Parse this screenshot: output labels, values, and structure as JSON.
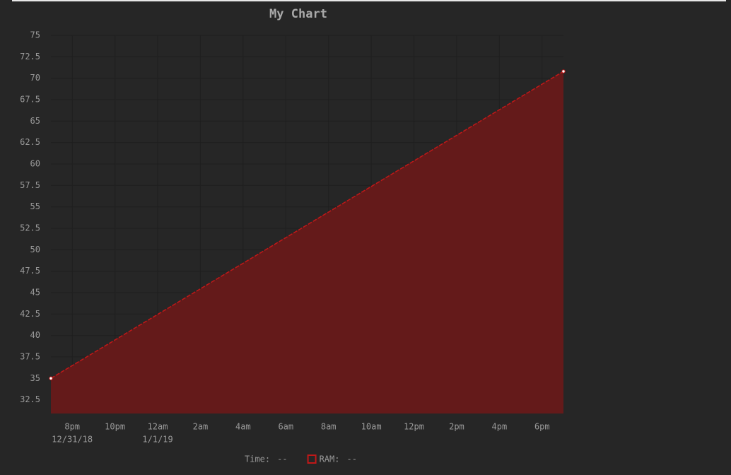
{
  "chart_data": {
    "type": "area",
    "title": "My Chart",
    "x": [
      0,
      24
    ],
    "xlim": [
      0,
      24
    ],
    "xticks": [
      {
        "value": 1,
        "label": "8pm"
      },
      {
        "value": 3,
        "label": "10pm"
      },
      {
        "value": 5,
        "label": "12am"
      },
      {
        "value": 7,
        "label": "2am"
      },
      {
        "value": 9,
        "label": "4am"
      },
      {
        "value": 11,
        "label": "6am"
      },
      {
        "value": 13,
        "label": "8am"
      },
      {
        "value": 15,
        "label": "10am"
      },
      {
        "value": 17,
        "label": "12pm"
      },
      {
        "value": 19,
        "label": "2pm"
      },
      {
        "value": 21,
        "label": "4pm"
      },
      {
        "value": 23,
        "label": "6pm"
      }
    ],
    "xtick_dates": [
      {
        "value": 1,
        "label": "12/31/18"
      },
      {
        "value": 5,
        "label": "1/1/19"
      }
    ],
    "ylim": [
      30.9,
      75
    ],
    "yticks": [
      32.5,
      35,
      37.5,
      40,
      42.5,
      45,
      47.5,
      50,
      52.5,
      55,
      57.5,
      60,
      62.5,
      65,
      67.5,
      70,
      72.5,
      75
    ],
    "grid": true,
    "series": [
      {
        "color": "#c01818",
        "fill": "#641a1a",
        "values": [
          35,
          70.8
        ]
      }
    ],
    "legend": [
      {
        "label": "Time:",
        "value": "--"
      },
      {
        "label": "RAM:",
        "value": "--",
        "color": "#c01818"
      }
    ]
  }
}
